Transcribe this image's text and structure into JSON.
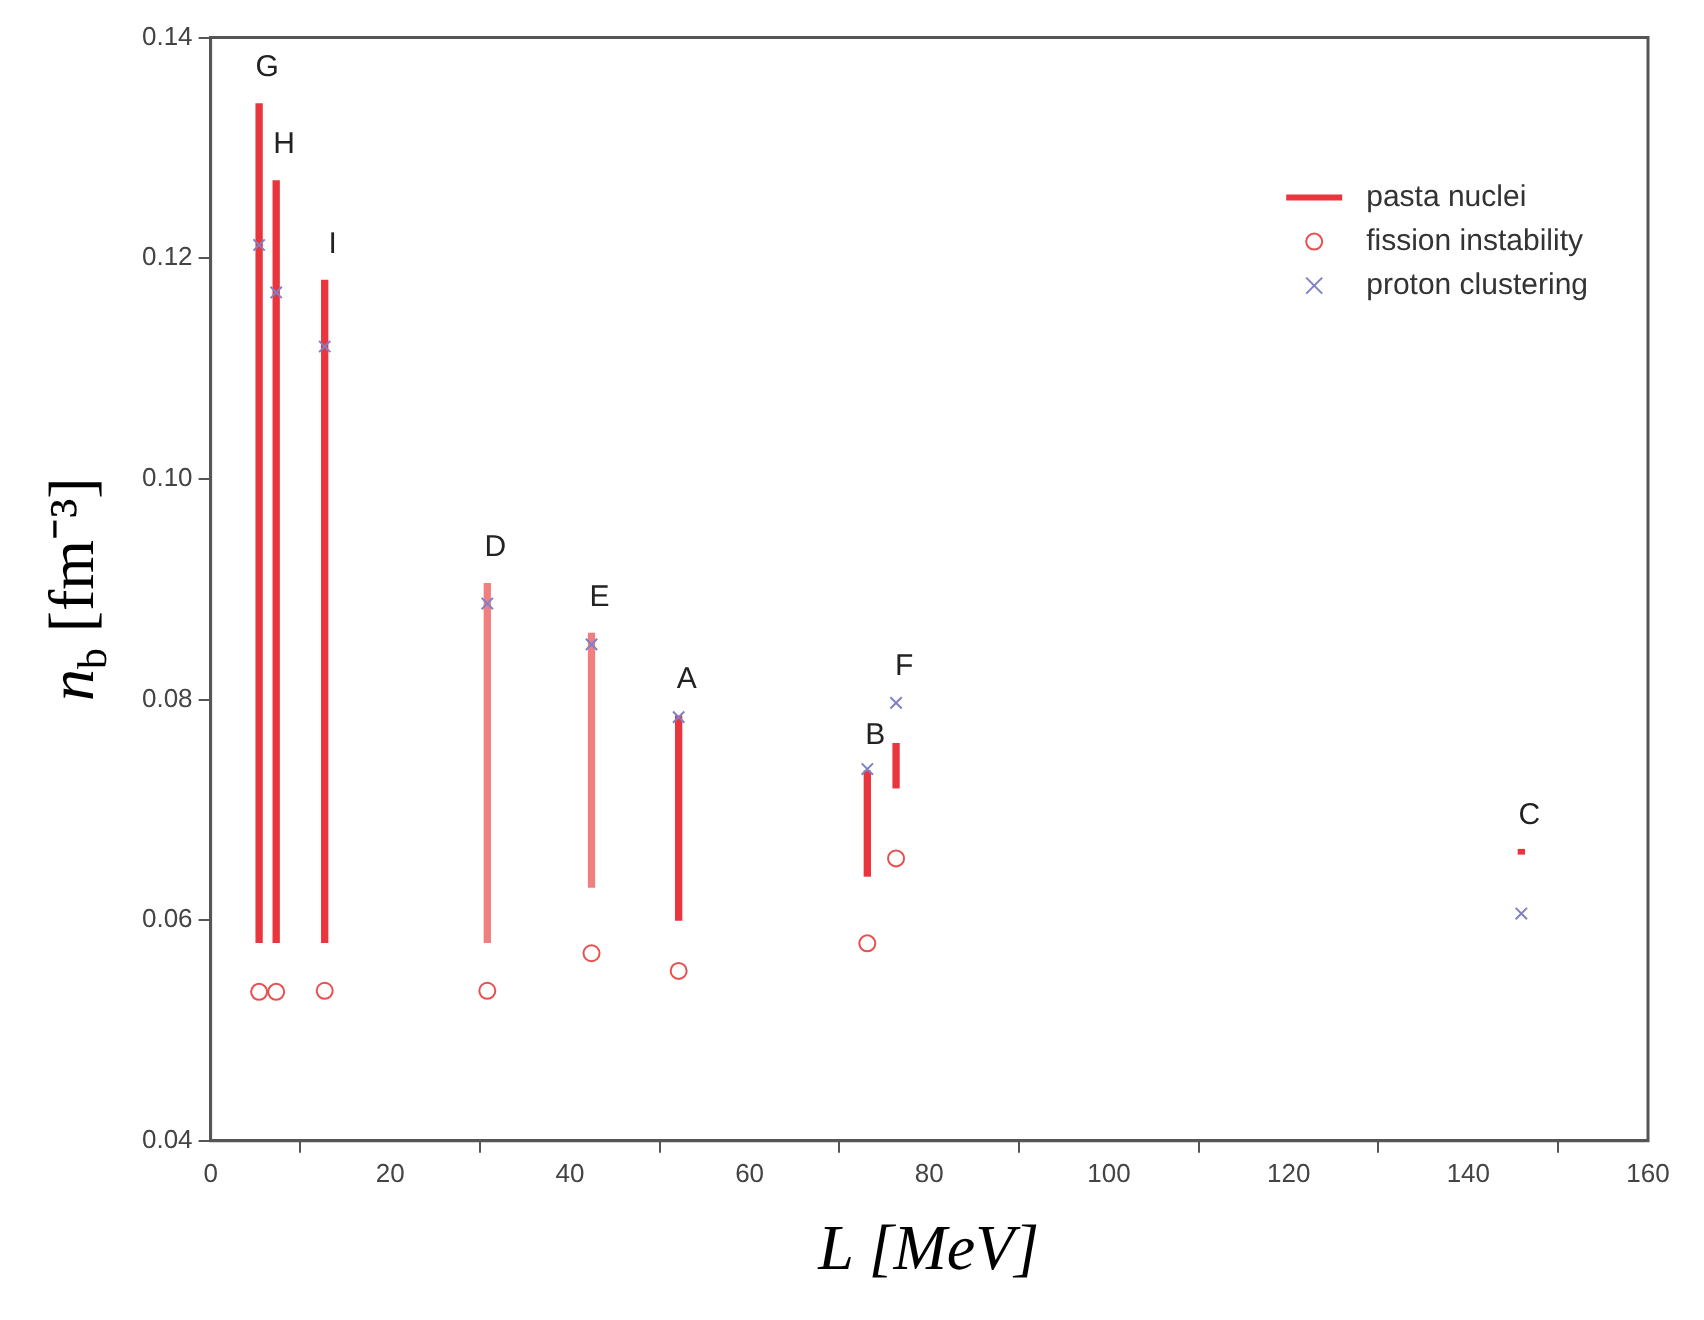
{
  "chart_data": {
    "type": "scatter",
    "xlabel": "L [MeV]",
    "ylabel": "n$_{b}$ [fm⁻³]",
    "xlim": [
      0,
      160
    ],
    "xticks": [
      0,
      20,
      40,
      60,
      80,
      100,
      120,
      140,
      160
    ],
    "ylim": [
      0.04,
      0.14
    ],
    "yticks": [
      {
        "value": 0.04,
        "label": "0.04"
      },
      {
        "value": 0.06,
        "label": "0.06"
      },
      {
        "value": 0.08,
        "label": "0.08"
      },
      {
        "value": 0.1,
        "label": "0.10"
      },
      {
        "value": 0.12,
        "label": "0.12"
      },
      {
        "value": 0.14,
        "label": "0.14"
      }
    ],
    "legend": "top right",
    "series": [
      {
        "name": "pasta nuclei",
        "type": "bar",
        "color": "#e8363c",
        "colors": [
          "#e8363c",
          "#e8363c",
          "#e8363c",
          "#f08080",
          "#f08080",
          "#e8363c",
          "#e8363c",
          "#e8363c",
          "#e8363c"
        ],
        "x": [
          5.4,
          7.3,
          12.7,
          30.8,
          42.4,
          52.1,
          73.1,
          76.3,
          145.9
        ],
        "base": [
          0.058,
          0.058,
          0.058,
          0.058,
          0.063,
          0.06,
          0.064,
          0.072,
          0.066
        ],
        "values": [
          0.076,
          0.069,
          0.06,
          0.0325,
          0.023,
          0.0185,
          0.0095,
          0.004,
          0.0004
        ]
      },
      {
        "name": "fission instability",
        "marker": "circle",
        "color": "#e85050",
        "x": [
          5.4,
          7.3,
          12.7,
          30.8,
          42.4,
          52.1,
          73.1,
          76.3
        ],
        "values": [
          0.0535,
          0.0535,
          0.0536,
          0.0536,
          0.057,
          0.0554,
          0.0579,
          0.0656
        ]
      },
      {
        "name": "proton clustering",
        "marker": "cross",
        "color": "#8080c8",
        "x": [
          5.4,
          7.3,
          12.7,
          30.8,
          42.4,
          52.1,
          73.1,
          76.3,
          145.9
        ],
        "values": [
          0.1212,
          0.1169,
          0.112,
          0.0887,
          0.085,
          0.0784,
          0.0737,
          0.0797,
          0.0606
        ]
      }
    ],
    "annotations": [
      {
        "text": "G",
        "x": 5.4,
        "y": 0.134
      },
      {
        "text": "H",
        "x": 7.3,
        "y": 0.127
      },
      {
        "text": "I",
        "x": 12.7,
        "y": 0.118
      },
      {
        "text": "D",
        "x": 30.8,
        "y": 0.0905
      },
      {
        "text": "E",
        "x": 42.4,
        "y": 0.086
      },
      {
        "text": "A",
        "x": 52.1,
        "y": 0.0785
      },
      {
        "text": "B",
        "x": 73.1,
        "y": 0.0735
      },
      {
        "text": "F",
        "x": 76.3,
        "y": 0.0797
      },
      {
        "text": "C",
        "x": 145.9,
        "y": 0.0662
      }
    ]
  }
}
